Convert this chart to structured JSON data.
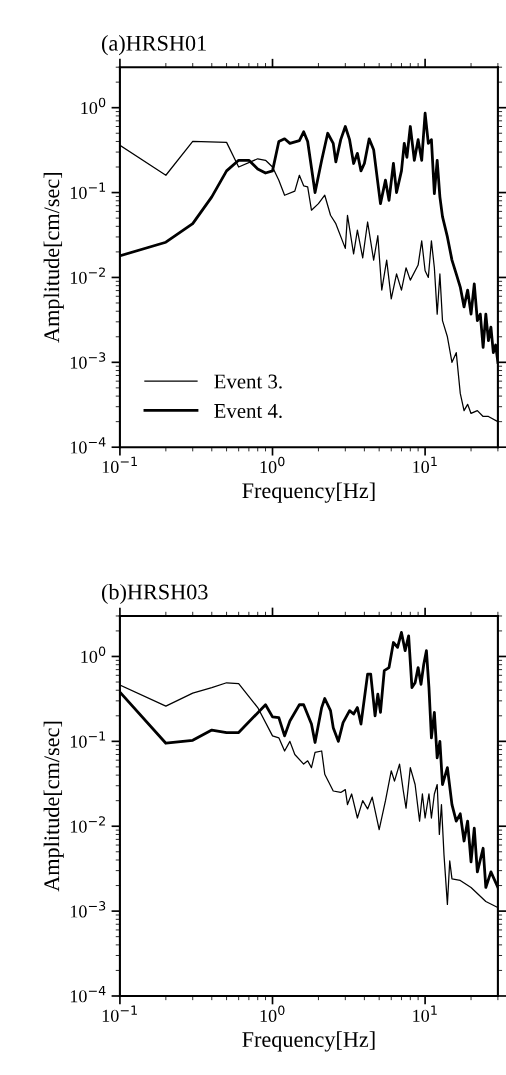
{
  "chart_data": [
    {
      "type": "line",
      "title": "(a)HRSH01",
      "xlabel": "Frequency[Hz]",
      "ylabel": "Amplitude[cm/sec]",
      "log": "xy",
      "grid": false,
      "legend": "bottom left",
      "xlim": [
        0.1,
        30
      ],
      "ylim": [
        0.0001,
        3
      ],
      "xticks": [
        {
          "value": 0.1,
          "label": "10$^{−1}$"
        },
        {
          "value": 1,
          "label": "10$^{0}$"
        },
        {
          "value": 10,
          "label": "10$^{1}$"
        }
      ],
      "yticks": [
        {
          "value": 0.0001,
          "label": "10$^{−4}$"
        },
        {
          "value": 0.001,
          "label": "10$^{−3}$"
        },
        {
          "value": 0.01,
          "label": "10$^{−2}$"
        },
        {
          "value": 0.1,
          "label": "10$^{−1}$"
        },
        {
          "value": 1,
          "label": "10$^{0}$"
        }
      ],
      "series": [
        {
          "name": "Event 3.",
          "color": "#000000",
          "x": [
            0.1,
            0.2,
            0.3,
            0.5,
            0.6,
            0.8,
            0.9,
            1.0,
            1.1,
            1.2,
            1.4,
            1.5,
            1.6,
            1.7,
            1.8,
            2.0,
            2.2,
            2.4,
            2.6,
            3.0,
            3.1,
            3.4,
            3.6,
            3.9,
            4.2,
            4.6,
            4.9,
            5.2,
            5.6,
            6.0,
            6.5,
            7.0,
            7.5,
            8.0,
            9.0,
            9.5,
            10,
            10.5,
            11,
            11.5,
            12,
            12.5,
            13,
            14,
            15,
            16,
            17,
            18,
            19,
            20,
            22,
            24,
            26,
            30
          ],
          "values": [
            0.36,
            0.16,
            0.4,
            0.39,
            0.2,
            0.25,
            0.24,
            0.2,
            0.14,
            0.093,
            0.104,
            0.16,
            0.12,
            0.117,
            0.062,
            0.074,
            0.093,
            0.054,
            0.043,
            0.022,
            0.054,
            0.019,
            0.036,
            0.017,
            0.045,
            0.016,
            0.031,
            0.0071,
            0.016,
            0.0056,
            0.011,
            0.0071,
            0.013,
            0.0093,
            0.014,
            0.027,
            0.012,
            0.01,
            0.027,
            0.013,
            0.0037,
            0.011,
            0.0031,
            0.002,
            0.001,
            0.0013,
            0.00043,
            0.00027,
            0.00032,
            0.00025,
            0.00027,
            0.00023,
            0.00023,
            0.0002
          ]
        },
        {
          "name": "Event 4.",
          "color": "#000000",
          "x": [
            0.1,
            0.2,
            0.3,
            0.4,
            0.5,
            0.6,
            0.7,
            0.8,
            0.9,
            1.0,
            1.1,
            1.2,
            1.3,
            1.5,
            1.6,
            1.7,
            1.9,
            2.1,
            2.3,
            2.5,
            2.6,
            2.8,
            3.0,
            3.2,
            3.4,
            3.6,
            3.8,
            4.0,
            4.3,
            4.6,
            4.9,
            5.1,
            5.5,
            5.8,
            6.2,
            6.5,
            7.0,
            7.3,
            7.6,
            8.0,
            8.5,
            9.0,
            9.5,
            10,
            10.5,
            11,
            11.5,
            12,
            12.5,
            13,
            14,
            15,
            16,
            17,
            18,
            19,
            20,
            21,
            22,
            23,
            24,
            25,
            26,
            27,
            28,
            29,
            30
          ],
          "values": [
            0.018,
            0.026,
            0.043,
            0.089,
            0.18,
            0.24,
            0.24,
            0.19,
            0.17,
            0.18,
            0.4,
            0.43,
            0.38,
            0.41,
            0.52,
            0.4,
            0.1,
            0.24,
            0.5,
            0.38,
            0.23,
            0.42,
            0.6,
            0.42,
            0.22,
            0.29,
            0.18,
            0.22,
            0.43,
            0.32,
            0.13,
            0.074,
            0.14,
            0.081,
            0.22,
            0.1,
            0.18,
            0.38,
            0.26,
            0.6,
            0.24,
            0.42,
            0.24,
            0.86,
            0.38,
            0.42,
            0.097,
            0.24,
            0.089,
            0.052,
            0.03,
            0.016,
            0.011,
            0.0077,
            0.0045,
            0.0071,
            0.0037,
            0.0084,
            0.0031,
            0.0037,
            0.0015,
            0.0037,
            0.0018,
            0.0026,
            0.0013,
            0.0016,
            0.001
          ]
        }
      ]
    },
    {
      "type": "line",
      "title": "(b)HRSH03",
      "xlabel": "Frequency[Hz]",
      "ylabel": "Amplitude[cm/sec]",
      "log": "xy",
      "grid": false,
      "legend": false,
      "xlim": [
        0.1,
        30
      ],
      "ylim": [
        0.0001,
        3
      ],
      "xticks": [
        {
          "value": 0.1,
          "label": "10$^{−1}$"
        },
        {
          "value": 1,
          "label": "10$^{0}$"
        },
        {
          "value": 10,
          "label": "10$^{1}$"
        }
      ],
      "yticks": [
        {
          "value": 0.0001,
          "label": "10$^{−4}$"
        },
        {
          "value": 0.001,
          "label": "10$^{−3}$"
        },
        {
          "value": 0.01,
          "label": "10$^{−2}$"
        },
        {
          "value": 0.1,
          "label": "10$^{−1}$"
        },
        {
          "value": 1,
          "label": "10$^{0}$"
        }
      ],
      "series": [
        {
          "color": "#000000",
          "x": [
            0.1,
            0.2,
            0.3,
            0.4,
            0.5,
            0.6,
            0.8,
            1.0,
            1.1,
            1.2,
            1.3,
            1.4,
            1.6,
            1.7,
            1.8,
            1.9,
            2.1,
            2.2,
            2.5,
            2.8,
            3.0,
            3.1,
            3.3,
            3.6,
            3.9,
            4.2,
            4.5,
            5.0,
            5.5,
            6.0,
            6.3,
            6.8,
            7.2,
            7.5,
            8.0,
            8.6,
            9.2,
            9.6,
            10,
            10.6,
            11,
            11.5,
            12,
            12.4,
            12.8,
            13.3,
            14,
            14.5,
            15,
            17,
            20,
            25,
            30
          ],
          "values": [
            0.46,
            0.26,
            0.37,
            0.43,
            0.49,
            0.48,
            0.25,
            0.116,
            0.11,
            0.077,
            0.1,
            0.07,
            0.054,
            0.059,
            0.049,
            0.074,
            0.077,
            0.041,
            0.026,
            0.025,
            0.027,
            0.018,
            0.024,
            0.0125,
            0.02,
            0.016,
            0.022,
            0.0091,
            0.02,
            0.045,
            0.034,
            0.054,
            0.026,
            0.0163,
            0.049,
            0.031,
            0.0115,
            0.024,
            0.0125,
            0.024,
            0.0125,
            0.024,
            0.031,
            0.008,
            0.018,
            0.0046,
            0.0012,
            0.0039,
            0.0024,
            0.0023,
            0.0019,
            0.0013,
            0.0011
          ]
        },
        {
          "color": "#000000",
          "x": [
            0.1,
            0.2,
            0.3,
            0.4,
            0.5,
            0.6,
            0.9,
            1.0,
            1.1,
            1.2,
            1.3,
            1.5,
            1.6,
            1.8,
            1.9,
            2.1,
            2.2,
            2.4,
            2.5,
            2.7,
            2.9,
            3.2,
            3.4,
            3.6,
            3.8,
            4.2,
            4.4,
            4.7,
            4.9,
            5.1,
            5.4,
            5.8,
            6.2,
            6.6,
            7.0,
            7.4,
            7.8,
            8.2,
            8.6,
            9.0,
            9.4,
            9.8,
            10.2,
            10.6,
            11,
            11.5,
            12,
            12.5,
            13,
            14,
            15,
            16,
            17,
            18,
            19,
            20,
            21,
            22,
            24,
            25,
            27,
            30
          ],
          "values": [
            0.38,
            0.095,
            0.103,
            0.136,
            0.127,
            0.127,
            0.27,
            0.194,
            0.19,
            0.116,
            0.174,
            0.27,
            0.27,
            0.16,
            0.097,
            0.25,
            0.32,
            0.23,
            0.145,
            0.1,
            0.166,
            0.23,
            0.21,
            0.25,
            0.16,
            0.62,
            0.62,
            0.2,
            0.36,
            0.22,
            0.68,
            0.74,
            1.46,
            1.28,
            1.92,
            1.17,
            1.75,
            0.43,
            0.49,
            0.74,
            0.47,
            0.81,
            1.17,
            0.43,
            0.11,
            0.22,
            0.064,
            0.1,
            0.031,
            0.049,
            0.018,
            0.0115,
            0.014,
            0.0067,
            0.0115,
            0.0038,
            0.0095,
            0.0029,
            0.0055,
            0.0019,
            0.0029,
            0.0019
          ]
        }
      ]
    }
  ]
}
